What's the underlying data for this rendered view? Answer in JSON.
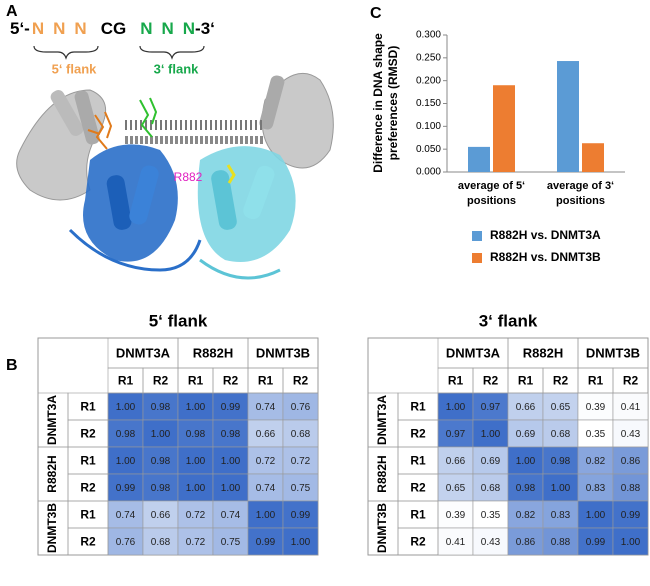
{
  "panel_labels": {
    "a": "A",
    "b": "B",
    "c": "C"
  },
  "structure": {
    "sequence": [
      "5‘-",
      "N",
      "N",
      "N",
      "CG",
      "N",
      "N",
      "N",
      "-3‘"
    ],
    "left_flank": "5‘ flank",
    "right_flank": "3‘ flank",
    "residue": "R882"
  },
  "tables": [
    {
      "title": "5‘ flank",
      "groups": [
        "DNMT3A",
        "R882H",
        "DNMT3B"
      ],
      "replicates": [
        "R1",
        "R2"
      ],
      "rows": [
        [
          "1.00",
          "0.98",
          "1.00",
          "0.99",
          "0.74",
          "0.76"
        ],
        [
          "0.98",
          "1.00",
          "0.98",
          "0.98",
          "0.66",
          "0.68"
        ],
        [
          "1.00",
          "0.98",
          "1.00",
          "1.00",
          "0.72",
          "0.72"
        ],
        [
          "0.99",
          "0.98",
          "1.00",
          "1.00",
          "0.74",
          "0.75"
        ],
        [
          "0.74",
          "0.66",
          "0.72",
          "0.74",
          "1.00",
          "0.99"
        ],
        [
          "0.76",
          "0.68",
          "0.72",
          "0.75",
          "0.99",
          "1.00"
        ]
      ]
    },
    {
      "title": "3‘ flank",
      "groups": [
        "DNMT3A",
        "R882H",
        "DNMT3B"
      ],
      "replicates": [
        "R1",
        "R2"
      ],
      "rows": [
        [
          "1.00",
          "0.97",
          "0.66",
          "0.65",
          "0.39",
          "0.41"
        ],
        [
          "0.97",
          "1.00",
          "0.69",
          "0.68",
          "0.35",
          "0.43"
        ],
        [
          "0.66",
          "0.69",
          "1.00",
          "0.98",
          "0.82",
          "0.86"
        ],
        [
          "0.65",
          "0.68",
          "0.98",
          "1.00",
          "0.83",
          "0.88"
        ],
        [
          "0.39",
          "0.35",
          "0.82",
          "0.83",
          "1.00",
          "0.99"
        ],
        [
          "0.41",
          "0.43",
          "0.86",
          "0.88",
          "0.99",
          "1.00"
        ]
      ]
    }
  ],
  "chart_data": {
    "type": "bar",
    "y_label": "Difference in DNA shape preferences (RMSD)",
    "categories": [
      "average of 5‘ positions",
      "average of 3‘ positions"
    ],
    "series": [
      {
        "name": "R882H vs. DNMT3A",
        "color": "#5b9bd5",
        "values": [
          0.055,
          0.243
        ]
      },
      {
        "name": "R882H vs. DNMT3B",
        "color": "#ed7d31",
        "values": [
          0.19,
          0.063
        ]
      }
    ],
    "ylim": [
      0,
      0.3
    ],
    "yticks": [
      {
        "value": 0,
        "label": "0.000"
      },
      {
        "value": 0.05,
        "label": "0.050"
      },
      {
        "value": 0.1,
        "label": "0.100"
      },
      {
        "value": 0.15,
        "label": "0.150"
      },
      {
        "value": 0.2,
        "label": "0.200"
      },
      {
        "value": 0.25,
        "label": "0.250"
      },
      {
        "value": 0.3,
        "label": "0.300"
      }
    ]
  }
}
